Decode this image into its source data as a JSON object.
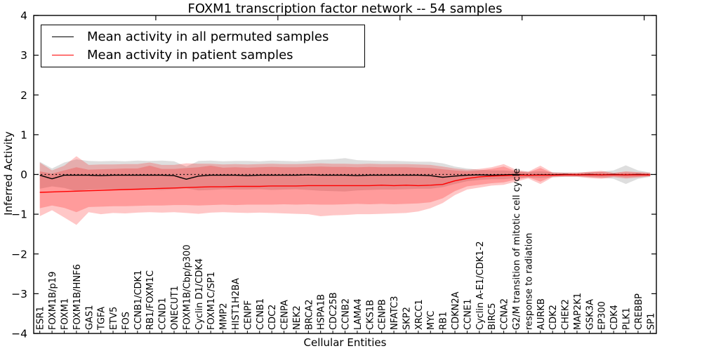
{
  "chart": {
    "title": "FOXM1 transcription factor network -- 54 samples",
    "xlabel": "Cellular Entities",
    "ylabel": "Inferred Activity",
    "legend": {
      "items": [
        {
          "label": "Mean activity in all permuted samples",
          "color": "#000000"
        },
        {
          "label": "Mean activity in patient samples",
          "color": "#ff0000"
        }
      ]
    },
    "ytick_labels": [
      "4",
      "3",
      "2",
      "1",
      "0",
      "−1",
      "−2",
      "−3",
      "−4"
    ],
    "colors": {
      "permuted_line": "#000000",
      "patient_line": "#ff0000",
      "permuted_band": "rgba(0,0,0,0.13)",
      "patient_band": "rgba(255,0,0,0.22)",
      "zero_line": "#000000",
      "background": "#ffffff"
    }
  },
  "chart_data": {
    "type": "line",
    "title": "FOXM1 transcription factor network -- 54 samples",
    "xlabel": "Cellular Entities",
    "ylabel": "Inferred Activity",
    "ylim": [
      -4,
      4
    ],
    "yticks": [
      4,
      3,
      2,
      1,
      0,
      -1,
      -2,
      -3,
      -4
    ],
    "top_axis_ticks": [
      10,
      20,
      30,
      40,
      50
    ],
    "grid": false,
    "legend_position": "upper left",
    "reference_line": {
      "y": 0,
      "style": "dotted",
      "color": "#000000"
    },
    "categories": [
      "ESR1",
      "FOXM1B/p19",
      "FOXM1",
      "FOXM1B/HNF6",
      "GAS1",
      "TGFA",
      "ETV5",
      "FOS",
      "CCNB1/CDK1",
      "RB1/FOXM1C",
      "CCND1",
      "ONECUT1",
      "FOXM1B/Cbp/p300",
      "Cyclin D1/CDK4",
      "FOXM1C/SP1",
      "MMP2",
      "HIST1H2BA",
      "CENPF",
      "CCNB1",
      "CDC2",
      "CENPA",
      "NEK2",
      "BRCA2",
      "HSPA1B",
      "CDC25B",
      "CCNB2",
      "LAMA4",
      "CKS1B",
      "CENPB",
      "NFATC3",
      "SKP2",
      "XRCC1",
      "MYC",
      "RB1",
      "CDKN2A",
      "CCNE1",
      "Cyclin A-E1/CDK1-2",
      "BIRC5",
      "CCNA2",
      "G2/M transition of mitotic cell cycle",
      "response to radiation",
      "AURKB",
      "CDK2",
      "CHEK2",
      "MAP2K1",
      "GSK3A",
      "EP300",
      "CDK4",
      "PLK1",
      "CREBBP",
      "SP1"
    ],
    "series": [
      {
        "name": "Mean activity in all permuted samples",
        "color": "#000000",
        "values": [
          -0.02,
          -0.11,
          -0.02,
          -0.02,
          -0.02,
          -0.03,
          -0.02,
          -0.02,
          -0.02,
          -0.02,
          -0.02,
          -0.03,
          -0.12,
          -0.04,
          -0.02,
          -0.02,
          -0.02,
          -0.03,
          -0.02,
          -0.02,
          -0.02,
          -0.02,
          -0.01,
          -0.02,
          -0.02,
          -0.02,
          -0.03,
          -0.02,
          -0.02,
          -0.02,
          -0.02,
          -0.02,
          -0.03,
          -0.07,
          -0.04,
          -0.02,
          -0.01,
          -0.02,
          -0.01,
          0.0,
          -0.02,
          -0.01,
          -0.01,
          0.0,
          -0.01,
          0.0,
          -0.01,
          0.0,
          -0.01,
          0.0,
          -0.01
        ],
        "band_upper": [
          0.32,
          0.15,
          0.3,
          0.38,
          0.34,
          0.33,
          0.34,
          0.33,
          0.35,
          0.34,
          0.35,
          0.33,
          0.2,
          0.34,
          0.35,
          0.33,
          0.34,
          0.34,
          0.33,
          0.35,
          0.34,
          0.33,
          0.35,
          0.37,
          0.38,
          0.41,
          0.36,
          0.35,
          0.34,
          0.34,
          0.33,
          0.32,
          0.32,
          0.28,
          0.2,
          0.15,
          0.12,
          0.1,
          0.1,
          0.08,
          0.07,
          0.08,
          0.06,
          0.05,
          0.05,
          0.06,
          0.07,
          0.1,
          0.23,
          0.1,
          0.05
        ],
        "band_lower": [
          -0.36,
          -0.3,
          -0.34,
          -0.42,
          -0.38,
          -0.37,
          -0.38,
          -0.37,
          -0.39,
          -0.38,
          -0.39,
          -0.37,
          -0.35,
          -0.4,
          -0.39,
          -0.37,
          -0.38,
          -0.38,
          -0.37,
          -0.39,
          -0.38,
          -0.37,
          -0.39,
          -0.41,
          -0.42,
          -0.43,
          -0.4,
          -0.39,
          -0.38,
          -0.38,
          -0.37,
          -0.36,
          -0.36,
          -0.32,
          -0.24,
          -0.17,
          -0.14,
          -0.12,
          -0.12,
          -0.09,
          -0.08,
          -0.09,
          -0.07,
          -0.06,
          -0.06,
          -0.07,
          -0.08,
          -0.11,
          -0.24,
          -0.11,
          -0.06
        ]
      },
      {
        "name": "Mean activity in patient samples",
        "color": "#ff0000",
        "values": [
          -0.45,
          -0.44,
          -0.43,
          -0.42,
          -0.41,
          -0.4,
          -0.39,
          -0.38,
          -0.37,
          -0.36,
          -0.35,
          -0.34,
          -0.33,
          -0.32,
          -0.31,
          -0.31,
          -0.3,
          -0.3,
          -0.3,
          -0.29,
          -0.29,
          -0.29,
          -0.28,
          -0.28,
          -0.28,
          -0.28,
          -0.28,
          -0.28,
          -0.27,
          -0.28,
          -0.27,
          -0.28,
          -0.27,
          -0.25,
          -0.16,
          -0.1,
          -0.06,
          -0.04,
          -0.03,
          -0.02,
          -0.02,
          -0.02,
          -0.02,
          -0.01,
          -0.01,
          -0.01,
          -0.01,
          -0.01,
          -0.01,
          -0.01,
          -0.01
        ],
        "inner_band_upper": [
          0.08,
          0.02,
          0.1,
          0.18,
          0.12,
          0.13,
          0.14,
          0.15,
          0.15,
          0.22,
          0.14,
          0.14,
          0.16,
          0.18,
          0.22,
          0.17,
          0.18,
          0.17,
          0.18,
          0.19,
          0.18,
          0.18,
          0.19,
          0.2,
          0.19,
          0.19,
          0.18,
          0.19,
          0.18,
          0.18,
          0.18,
          0.17,
          0.16,
          0.13,
          0.1,
          0.08,
          0.1,
          0.14,
          0.2,
          0.08,
          0.05,
          0.16,
          0.03,
          0.03,
          0.03,
          0.05,
          0.06,
          0.03,
          0.05,
          0.04,
          0.03
        ],
        "inner_band_lower": [
          -0.85,
          -0.78,
          -0.84,
          -0.95,
          -0.82,
          -0.81,
          -0.8,
          -0.8,
          -0.79,
          -0.78,
          -0.78,
          -0.77,
          -0.77,
          -0.78,
          -0.77,
          -0.76,
          -0.77,
          -0.76,
          -0.76,
          -0.76,
          -0.75,
          -0.76,
          -0.75,
          -0.76,
          -0.76,
          -0.75,
          -0.74,
          -0.75,
          -0.74,
          -0.75,
          -0.74,
          -0.73,
          -0.7,
          -0.6,
          -0.42,
          -0.3,
          -0.26,
          -0.22,
          -0.2,
          -0.13,
          -0.07,
          -0.18,
          -0.05,
          -0.04,
          -0.04,
          -0.06,
          -0.08,
          -0.05,
          -0.07,
          -0.06,
          -0.04
        ],
        "outer_band_upper": [
          0.3,
          0.1,
          0.22,
          0.46,
          0.24,
          0.25,
          0.25,
          0.26,
          0.26,
          0.3,
          0.24,
          0.24,
          0.28,
          0.27,
          0.27,
          0.25,
          0.26,
          0.25,
          0.26,
          0.27,
          0.26,
          0.26,
          0.27,
          0.28,
          0.27,
          0.27,
          0.26,
          0.27,
          0.26,
          0.26,
          0.26,
          0.25,
          0.24,
          0.2,
          0.15,
          0.12,
          0.14,
          0.18,
          0.26,
          0.12,
          0.07,
          0.22,
          0.05,
          0.04,
          0.04,
          0.07,
          0.09,
          0.04,
          0.08,
          0.06,
          0.04
        ],
        "outer_band_lower": [
          -1.05,
          -0.9,
          -1.08,
          -1.27,
          -0.95,
          -1.0,
          -0.97,
          -0.98,
          -0.96,
          -0.95,
          -0.96,
          -0.95,
          -0.97,
          -0.99,
          -0.96,
          -0.95,
          -0.96,
          -0.97,
          -0.96,
          -0.97,
          -0.98,
          -0.99,
          -1.0,
          -1.05,
          -1.03,
          -1.02,
          -1.0,
          -1.0,
          -0.99,
          -0.98,
          -0.97,
          -0.93,
          -0.85,
          -0.72,
          -0.52,
          -0.38,
          -0.33,
          -0.28,
          -0.26,
          -0.18,
          -0.1,
          -0.24,
          -0.07,
          -0.06,
          -0.06,
          -0.09,
          -0.11,
          -0.07,
          -0.1,
          -0.08,
          -0.05
        ]
      }
    ]
  }
}
